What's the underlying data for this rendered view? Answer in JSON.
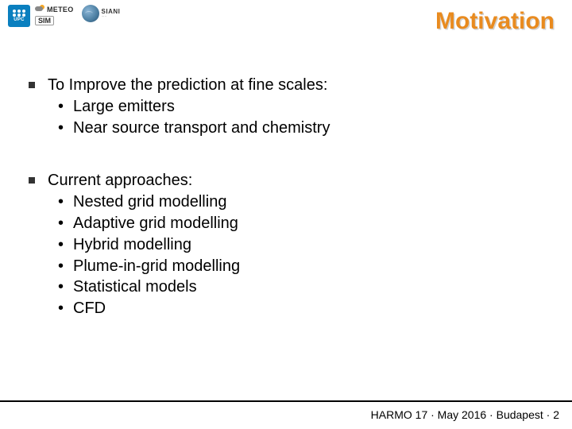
{
  "title": {
    "text": "Motivation",
    "color": "#e98b1f"
  },
  "logos": {
    "upc": "UPC",
    "meteo": "METEO",
    "sim": "SIM",
    "siani": "SIANI"
  },
  "body": {
    "sections": [
      {
        "heading": "To Improve the prediction at fine scales:",
        "items": [
          "Large emitters",
          "Near source transport and chemistry"
        ]
      },
      {
        "heading": "Current approaches:",
        "items": [
          "Nested grid modelling",
          "Adaptive grid modelling",
          "Hybrid modelling",
          "Plume-in-grid modelling",
          "Statistical models",
          "CFD"
        ]
      }
    ]
  },
  "footer": {
    "text": "HARMO 17 · May 2016 · Budapest · 2"
  },
  "colors": {
    "background": "#ffffff",
    "text": "#000000",
    "divider": "#000000"
  },
  "fontsize": {
    "title": 30,
    "body": 20,
    "footer": 14
  }
}
